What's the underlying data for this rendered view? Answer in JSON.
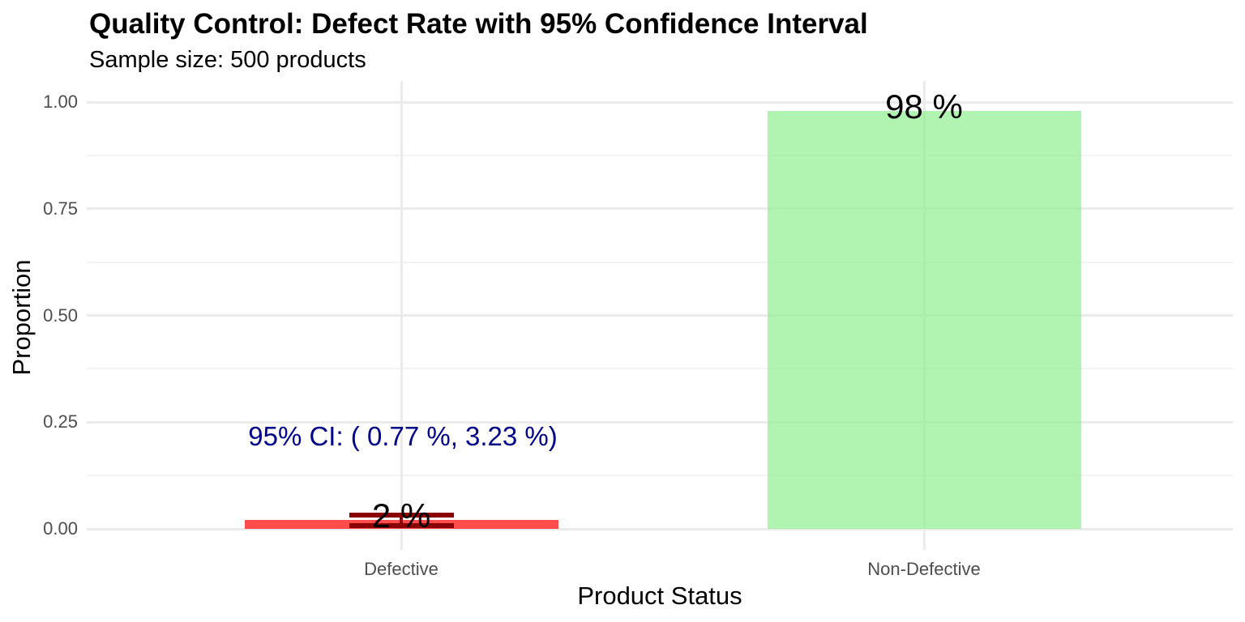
{
  "chart_data": {
    "type": "bar",
    "title": "Quality Control: Defect Rate with 95% Confidence Interval",
    "subtitle": "Sample size: 500 products",
    "xlabel": "Product Status",
    "ylabel": "Proportion",
    "categories": [
      "Defective",
      "Non-Defective"
    ],
    "values": [
      0.02,
      0.98
    ],
    "bar_labels": [
      "2 %",
      "98 %"
    ],
    "bar_colors": [
      "#FF0000",
      "#90EE90"
    ],
    "bar_alpha": 0.7,
    "bar_rendered_colors": [
      "#FB4D4D",
      "#B1F3B1"
    ],
    "sample_size": 500,
    "error_bar": {
      "category": "Defective",
      "category_index": 0,
      "lower": 0.0077,
      "upper": 0.0323,
      "color": "#8B0000"
    },
    "annotation": {
      "text": "95% CI: ( 0.77 %, 3.23 %)",
      "color": "#00008B",
      "x_category": "Defective",
      "y_value": 0.22
    },
    "y_axis": {
      "ticks": [
        {
          "label": "0.00",
          "value": 0
        },
        {
          "label": "0.25",
          "value": 0.25
        },
        {
          "label": "0.50",
          "value": 0.5
        },
        {
          "label": "0.75",
          "value": 0.75
        },
        {
          "label": "1.00",
          "value": 1.0
        }
      ],
      "minor_tick_values": [
        0.125,
        0.375,
        0.625,
        0.875
      ],
      "range": [
        0,
        1
      ]
    },
    "x_axis": {
      "tick_labels": [
        "Defective",
        "Non-Defective"
      ]
    },
    "legend": "none",
    "grid": {
      "horizontal_major": true,
      "horizontal_minor": true,
      "vertical_major_at_categories": true
    },
    "colors": {
      "background": "#FFFFFF",
      "grid_major": "#EBEBEB",
      "grid_minor": "#F3F3F3",
      "tick_label": "#4D4D4D",
      "text": "#000000"
    }
  }
}
